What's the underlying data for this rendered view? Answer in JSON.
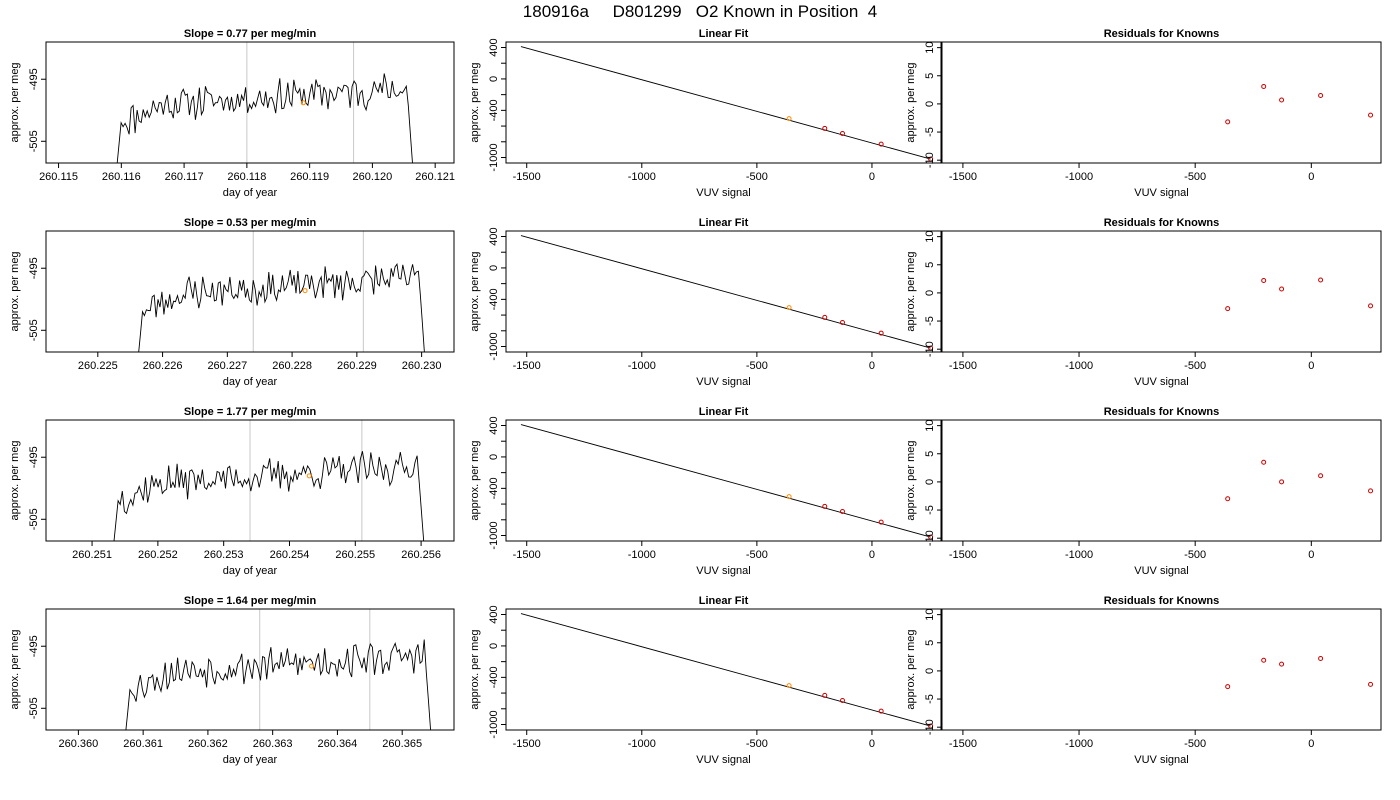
{
  "header": {
    "title": "180916a     D801299   O2 Known in Position  4"
  },
  "colors": {
    "trace": "#000000",
    "vline": "#c8c8c8",
    "known_point": "#ff8c00",
    "fit_point": "#cc0000",
    "axis": "#000000"
  },
  "chart_data": [
    {
      "type": "line",
      "row": 1,
      "title": "Slope =  0.77  per meg/min",
      "xlabel": "day of year",
      "ylabel": "approx. per meg",
      "xlim": [
        260.1148,
        260.1213
      ],
      "ylim": [
        -508.5,
        -489.0
      ],
      "xticks": [
        260.115,
        260.116,
        260.117,
        260.118,
        260.119,
        260.12,
        260.121
      ],
      "xtick_labels": [
        "260.115",
        "260.116",
        "260.117",
        "260.118",
        "260.119",
        "260.120",
        "260.121"
      ],
      "yticks": [
        -495,
        -505
      ],
      "ytick_labels": [
        "-495",
        "-505"
      ],
      "vlines": [
        260.118,
        260.1197
      ],
      "trace_start": 260.1159,
      "trace_end": 260.1207,
      "trace_seed": 11,
      "marker": {
        "x": 260.1189,
        "y": -498.8
      }
    },
    {
      "type": "line",
      "row": 2,
      "title": "Slope =  0.53  per meg/min",
      "xlabel": "day of year",
      "ylabel": "approx. per meg",
      "xlim": [
        260.2242,
        260.2305
      ],
      "ylim": [
        -508.5,
        -489.0
      ],
      "xticks": [
        260.225,
        260.226,
        260.227,
        260.228,
        260.229,
        260.23
      ],
      "xtick_labels": [
        "260.225",
        "260.226",
        "260.227",
        "260.228",
        "260.229",
        "260.230"
      ],
      "yticks": [
        -495,
        -505
      ],
      "ytick_labels": [
        "-495",
        "-505"
      ],
      "vlines": [
        260.2274,
        260.2291
      ],
      "trace_start": 260.2256,
      "trace_end": 260.2301,
      "trace_seed": 23,
      "marker": {
        "x": 260.2282,
        "y": -498.6
      }
    },
    {
      "type": "line",
      "row": 3,
      "title": "Slope =  1.77  per meg/min",
      "xlabel": "day of year",
      "ylabel": "approx. per meg",
      "xlim": [
        260.2503,
        260.2565
      ],
      "ylim": [
        -508.5,
        -489.0
      ],
      "xticks": [
        260.251,
        260.252,
        260.253,
        260.254,
        260.255,
        260.256
      ],
      "xtick_labels": [
        "260.251",
        "260.252",
        "260.253",
        "260.254",
        "260.255",
        "260.256"
      ],
      "yticks": [
        -495,
        -505
      ],
      "ytick_labels": [
        "-495",
        "-505"
      ],
      "vlines": [
        260.2534,
        260.2551
      ],
      "trace_start": 260.2513,
      "trace_end": 260.2561,
      "trace_seed": 37,
      "marker": {
        "x": 260.2543,
        "y": -498.0
      }
    },
    {
      "type": "line",
      "row": 4,
      "title": "Slope =  1.64  per meg/min",
      "xlabel": "day of year",
      "ylabel": "approx. per meg",
      "xlim": [
        260.3595,
        260.3658
      ],
      "ylim": [
        -508.5,
        -489.0
      ],
      "xticks": [
        260.36,
        260.361,
        260.362,
        260.363,
        260.364,
        260.365
      ],
      "xtick_labels": [
        "260.360",
        "260.361",
        "260.362",
        "260.363",
        "260.364",
        "260.365"
      ],
      "yticks": [
        -495,
        -505
      ],
      "ytick_labels": [
        "-495",
        "-505"
      ],
      "vlines": [
        260.3628,
        260.3645
      ],
      "trace_start": 260.3607,
      "trace_end": 260.3655,
      "trace_seed": 53,
      "marker": {
        "x": 260.3636,
        "y": -498.2
      }
    },
    {
      "type": "scatter",
      "row": 1,
      "title": "Linear Fit",
      "xlabel": "VUV signal",
      "ylabel": "approx. per meg",
      "xlim": [
        -1590,
        300
      ],
      "ylim": [
        -1070,
        470
      ],
      "xticks": [
        -1500,
        -1000,
        -500,
        0
      ],
      "xtick_labels": [
        "-1500",
        "-1000",
        "-500",
        "0"
      ],
      "yticks": [
        400,
        0,
        -400,
        -1000
      ],
      "ytick_labels": [
        "400",
        "0",
        "-400",
        "-1000"
      ],
      "yminor": [
        200,
        -200,
        -600,
        -800
      ],
      "fit_line": {
        "x": [
          -1525,
          255
        ],
        "y": [
          412,
          -1020
        ]
      },
      "points": {
        "x": [
          -360,
          -205,
          -128,
          40,
          255
        ],
        "y": [
          -505,
          -630,
          -695,
          -830,
          -1020
        ]
      }
    },
    {
      "type": "scatter",
      "row": 2,
      "title": "Linear Fit",
      "xlabel": "VUV signal",
      "ylabel": "approx. per meg",
      "xlim": [
        -1590,
        300
      ],
      "ylim": [
        -1070,
        470
      ],
      "xticks": [
        -1500,
        -1000,
        -500,
        0
      ],
      "xtick_labels": [
        "-1500",
        "-1000",
        "-500",
        "0"
      ],
      "yticks": [
        400,
        0,
        -400,
        -1000
      ],
      "ytick_labels": [
        "400",
        "0",
        "-400",
        "-1000"
      ],
      "yminor": [
        200,
        -200,
        -600,
        -800
      ],
      "fit_line": {
        "x": [
          -1525,
          255
        ],
        "y": [
          412,
          -1020
        ]
      },
      "points": {
        "x": [
          -360,
          -205,
          -128,
          40,
          255
        ],
        "y": [
          -505,
          -630,
          -695,
          -830,
          -1020
        ]
      }
    },
    {
      "type": "scatter",
      "row": 3,
      "title": "Linear Fit",
      "xlabel": "VUV signal",
      "ylabel": "approx. per meg",
      "xlim": [
        -1590,
        300
      ],
      "ylim": [
        -1070,
        470
      ],
      "xticks": [
        -1500,
        -1000,
        -500,
        0
      ],
      "xtick_labels": [
        "-1500",
        "-1000",
        "-500",
        "0"
      ],
      "yticks": [
        400,
        0,
        -400,
        -1000
      ],
      "ytick_labels": [
        "400",
        "0",
        "-400",
        "-1000"
      ],
      "yminor": [
        200,
        -200,
        -600,
        -800
      ],
      "fit_line": {
        "x": [
          -1525,
          255
        ],
        "y": [
          412,
          -1020
        ]
      },
      "points": {
        "x": [
          -360,
          -205,
          -128,
          40,
          255
        ],
        "y": [
          -505,
          -630,
          -695,
          -830,
          -1020
        ]
      }
    },
    {
      "type": "scatter",
      "row": 4,
      "title": "Linear Fit",
      "xlabel": "VUV signal",
      "ylabel": "approx. per meg",
      "xlim": [
        -1590,
        300
      ],
      "ylim": [
        -1070,
        470
      ],
      "xticks": [
        -1500,
        -1000,
        -500,
        0
      ],
      "xtick_labels": [
        "-1500",
        "-1000",
        "-500",
        "0"
      ],
      "yticks": [
        400,
        0,
        -400,
        -1000
      ],
      "ytick_labels": [
        "400",
        "0",
        "-400",
        "-1000"
      ],
      "yminor": [
        200,
        -200,
        -600,
        -800
      ],
      "fit_line": {
        "x": [
          -1525,
          255
        ],
        "y": [
          412,
          -1020
        ]
      },
      "points": {
        "x": [
          -360,
          -205,
          -128,
          40,
          255
        ],
        "y": [
          -505,
          -630,
          -695,
          -830,
          -1020
        ]
      }
    },
    {
      "type": "scatter",
      "row": 1,
      "title": "Residuals for Knowns",
      "xlabel": "VUV signal",
      "ylabel": "approx. per meg",
      "xlim": [
        -1590,
        300
      ],
      "ylim": [
        -10.5,
        11
      ],
      "xticks": [
        -1500,
        -1000,
        -500,
        0
      ],
      "xtick_labels": [
        "-1500",
        "-1000",
        "-500",
        "0"
      ],
      "yticks": [
        10,
        5,
        0,
        -5,
        -10
      ],
      "ytick_labels": [
        "10",
        "5",
        "0",
        "-5",
        "-10"
      ],
      "points": {
        "x": [
          -360,
          -205,
          -128,
          40,
          255
        ],
        "y": [
          -3.2,
          3.1,
          0.7,
          1.5,
          -2.0
        ]
      }
    },
    {
      "type": "scatter",
      "row": 2,
      "title": "Residuals for Knowns",
      "xlabel": "VUV signal",
      "ylabel": "approx. per meg",
      "xlim": [
        -1590,
        300
      ],
      "ylim": [
        -10.5,
        11
      ],
      "xticks": [
        -1500,
        -1000,
        -500,
        0
      ],
      "xtick_labels": [
        "-1500",
        "-1000",
        "-500",
        "0"
      ],
      "yticks": [
        10,
        5,
        0,
        -5,
        -10
      ],
      "ytick_labels": [
        "10",
        "5",
        "0",
        "-5",
        "-10"
      ],
      "points": {
        "x": [
          -360,
          -205,
          -128,
          40,
          255
        ],
        "y": [
          -2.8,
          2.2,
          0.7,
          2.3,
          -2.3
        ]
      }
    },
    {
      "type": "scatter",
      "row": 3,
      "title": "Residuals for Knowns",
      "xlabel": "VUV signal",
      "ylabel": "approx. per meg",
      "xlim": [
        -1590,
        300
      ],
      "ylim": [
        -10.5,
        11
      ],
      "xticks": [
        -1500,
        -1000,
        -500,
        0
      ],
      "xtick_labels": [
        "-1500",
        "-1000",
        "-500",
        "0"
      ],
      "yticks": [
        10,
        5,
        0,
        -5,
        -10
      ],
      "ytick_labels": [
        "10",
        "5",
        "0",
        "-5",
        "-10"
      ],
      "points": {
        "x": [
          -360,
          -205,
          -128,
          40,
          255
        ],
        "y": [
          -3.0,
          3.5,
          0.0,
          1.1,
          -1.6
        ]
      }
    },
    {
      "type": "scatter",
      "row": 4,
      "title": "Residuals for Knowns",
      "xlabel": "VUV signal",
      "ylabel": "approx. per meg",
      "xlim": [
        -1590,
        300
      ],
      "ylim": [
        -10.5,
        11
      ],
      "xticks": [
        -1500,
        -1000,
        -500,
        0
      ],
      "xtick_labels": [
        "-1500",
        "-1000",
        "-500",
        "0"
      ],
      "yticks": [
        10,
        5,
        0,
        -5,
        -10
      ],
      "ytick_labels": [
        "10",
        "5",
        "0",
        "-5",
        "-10"
      ],
      "points": {
        "x": [
          -360,
          -205,
          -128,
          40,
          255
        ],
        "y": [
          -2.8,
          1.9,
          1.2,
          2.2,
          -2.4
        ]
      }
    }
  ]
}
